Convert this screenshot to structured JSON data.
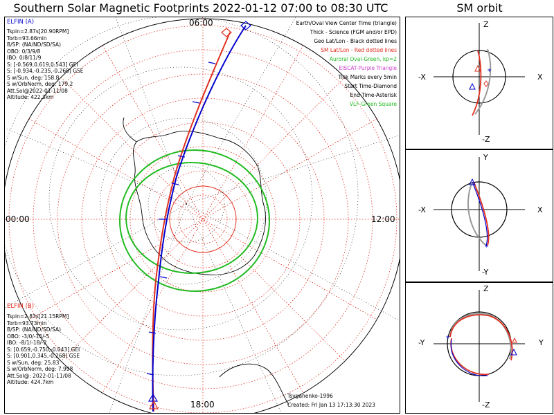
{
  "title": "Southern Solar Magnetic Footprints 2022-01-12 07:00 to 08:30 UTC",
  "orbit_title": "SM orbit",
  "hours": {
    "top": "06:00",
    "left": "00:00",
    "right": "12:00",
    "bottom": "18:00"
  },
  "sat_a": {
    "name": "ELFIN (A)",
    "lines": [
      "Tspin=2.87s[20.90RPM]",
      "Torb=93.66min",
      "B/SP: (NA/ND/SD/SA)",
      "OBO: 0/3/9/8",
      "IBO: 0/8/11/9",
      "S: [-0.569,0.619,0.543] GEI",
      "S: [-0.934,-0.235,-0.268] GSE",
      "S w/Sun, deg: 158.8",
      "S w/OrbNorm, deg: 179.2",
      "Att.Sol@2022-01-11/08",
      "Altitude: 422.3km"
    ]
  },
  "sat_b": {
    "name": "ELFIN (B)",
    "lines": [
      "Tspin=2.83s[21.15RPM]",
      "Torb=93.73min",
      "B/SP: (NA/ND/SD/SA)",
      "OBO: -3/0/-15/-5",
      "IBO: -8/1/-18/-2",
      "S: [0.659,-0.750,-0.043] GEI",
      "S: [0.901,0.345,-0.268] GSE",
      "S w/Sun, deg: 25.83",
      "S w/OrbNorm, deg: 7.998",
      "Att.Sol@: 2022-01-11/08",
      "Altitude: 424.7km"
    ]
  },
  "legend": [
    {
      "text": "Earth/Oval View Center Time (triangle)",
      "color": "#000000"
    },
    {
      "text": "Thick - Science (FGM and/or EPD)",
      "color": "#000000"
    },
    {
      "text": "Geo Lat/Lon - Black dotted lines",
      "color": "#000000"
    },
    {
      "text": "SM Lat/Lon - Red dotted lines",
      "color": "#e03020"
    },
    {
      "text": "Auroral Oval-Green, kp=2",
      "color": "#22bb22"
    },
    {
      "text": "EISCAT-Purple Triangle",
      "color": "#cc44cc"
    },
    {
      "text": "Tick Marks every 5min",
      "color": "#000000"
    },
    {
      "text": "Start Time-Diamond",
      "color": "#000000"
    },
    {
      "text": "End Time-Asterisk",
      "color": "#000000"
    },
    {
      "text": "VLF-Green Square",
      "color": "#22bb22"
    }
  ],
  "credit": "Tsyganenko-1996",
  "created": "Created: Fri Jan 13 17:13:30 2023",
  "panels": [
    {
      "top": "Z",
      "bottom": "-Z",
      "left": "-X",
      "right": "X"
    },
    {
      "top": "Y",
      "bottom": "-Y",
      "left": "-X",
      "right": "X"
    },
    {
      "top": "Z",
      "bottom": "-Z",
      "left": "-Y",
      "right": "Y"
    }
  ],
  "colors": {
    "elfin_a": "#0000cc",
    "elfin_b": "#e03020",
    "oval": "#22bb22",
    "sm_grid": "#e03020",
    "geo_grid": "#000000"
  }
}
